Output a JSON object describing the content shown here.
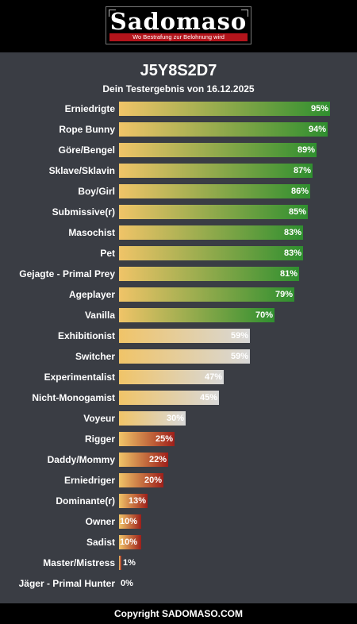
{
  "brand": {
    "logo_text": "Sadomaso",
    "tagline": "Wo Bestrafung zur Belohnung wird"
  },
  "result": {
    "code": "J5Y8S2D7",
    "subtitle": "Dein Testergebnis von 16.12.2025"
  },
  "colors": {
    "bar_start": "#f0c468",
    "high": "#2f8f2f",
    "mid": "#d8d8d8",
    "low": "#9e1f1a"
  },
  "chart_data": {
    "type": "bar",
    "orientation": "horizontal",
    "categories": [
      "Erniedrigte",
      "Rope Bunny",
      "Göre/Bengel",
      "Sklave/Sklavin",
      "Boy/Girl",
      "Submissive(r)",
      "Masochist",
      "Pet",
      "Gejagte - Primal Prey",
      "Ageplayer",
      "Vanilla",
      "Exhibitionist",
      "Switcher",
      "Experimentalist",
      "Nicht-Monogamist",
      "Voyeur",
      "Rigger",
      "Daddy/Mommy",
      "Erniedriger",
      "Dominante(r)",
      "Owner",
      "Sadist",
      "Master/Mistress",
      "Jäger - Primal Hunter"
    ],
    "values": [
      95,
      94,
      89,
      87,
      86,
      85,
      83,
      83,
      81,
      79,
      70,
      59,
      59,
      47,
      45,
      30,
      25,
      22,
      20,
      13,
      10,
      10,
      1,
      0
    ],
    "value_labels": [
      "95%",
      "94%",
      "89%",
      "87%",
      "86%",
      "85%",
      "83%",
      "83%",
      "81%",
      "79%",
      "70%",
      "59%",
      "59%",
      "47%",
      "45%",
      "30%",
      "25%",
      "22%",
      "20%",
      "13%",
      "10%",
      "10%",
      "1%",
      "0%"
    ],
    "xlim": [
      0,
      100
    ]
  },
  "footer": {
    "text": "Copyright SADOMASO.COM"
  }
}
